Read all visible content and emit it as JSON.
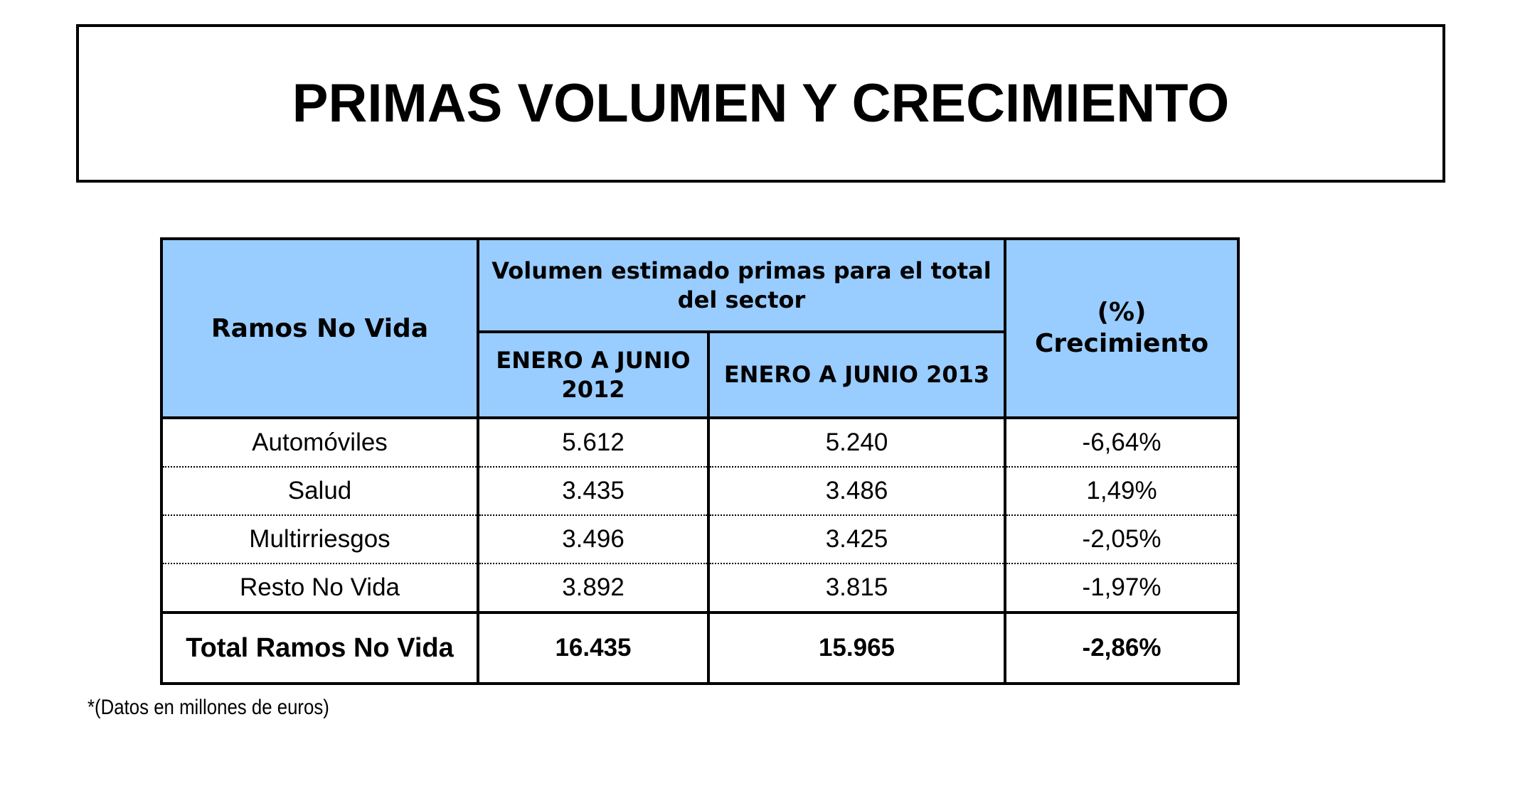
{
  "title": "PRIMAS VOLUMEN Y CRECIMIENTO",
  "table": {
    "header": {
      "ramos": "Ramos No Vida",
      "volumen": "Volumen estimado primas para el total del sector",
      "periodo_2012": "ENERO A JUNIO 2012",
      "periodo_2013": "ENERO A JUNIO 2013",
      "crecimiento_line1": "(%)",
      "crecimiento_line2": "Crecimiento"
    },
    "rows": [
      {
        "ramo": "Automóviles",
        "v2012": "5.612",
        "v2013": "5.240",
        "crecimiento": "-6,64%"
      },
      {
        "ramo": "Salud",
        "v2012": "3.435",
        "v2013": "3.486",
        "crecimiento": "1,49%"
      },
      {
        "ramo": "Multirriesgos",
        "v2012": "3.496",
        "v2013": "3.425",
        "crecimiento": "-2,05%"
      },
      {
        "ramo": "Resto No Vida",
        "v2012": "3.892",
        "v2013": "3.815",
        "crecimiento": "-1,97%"
      }
    ],
    "total": {
      "ramo": "Total Ramos No Vida",
      "v2012": "16.435",
      "v2013": "15.965",
      "crecimiento": "-2,86%"
    }
  },
  "footnote": "*(Datos en millones de euros)",
  "colors": {
    "header_background": "#99ccff",
    "border": "#000000"
  }
}
